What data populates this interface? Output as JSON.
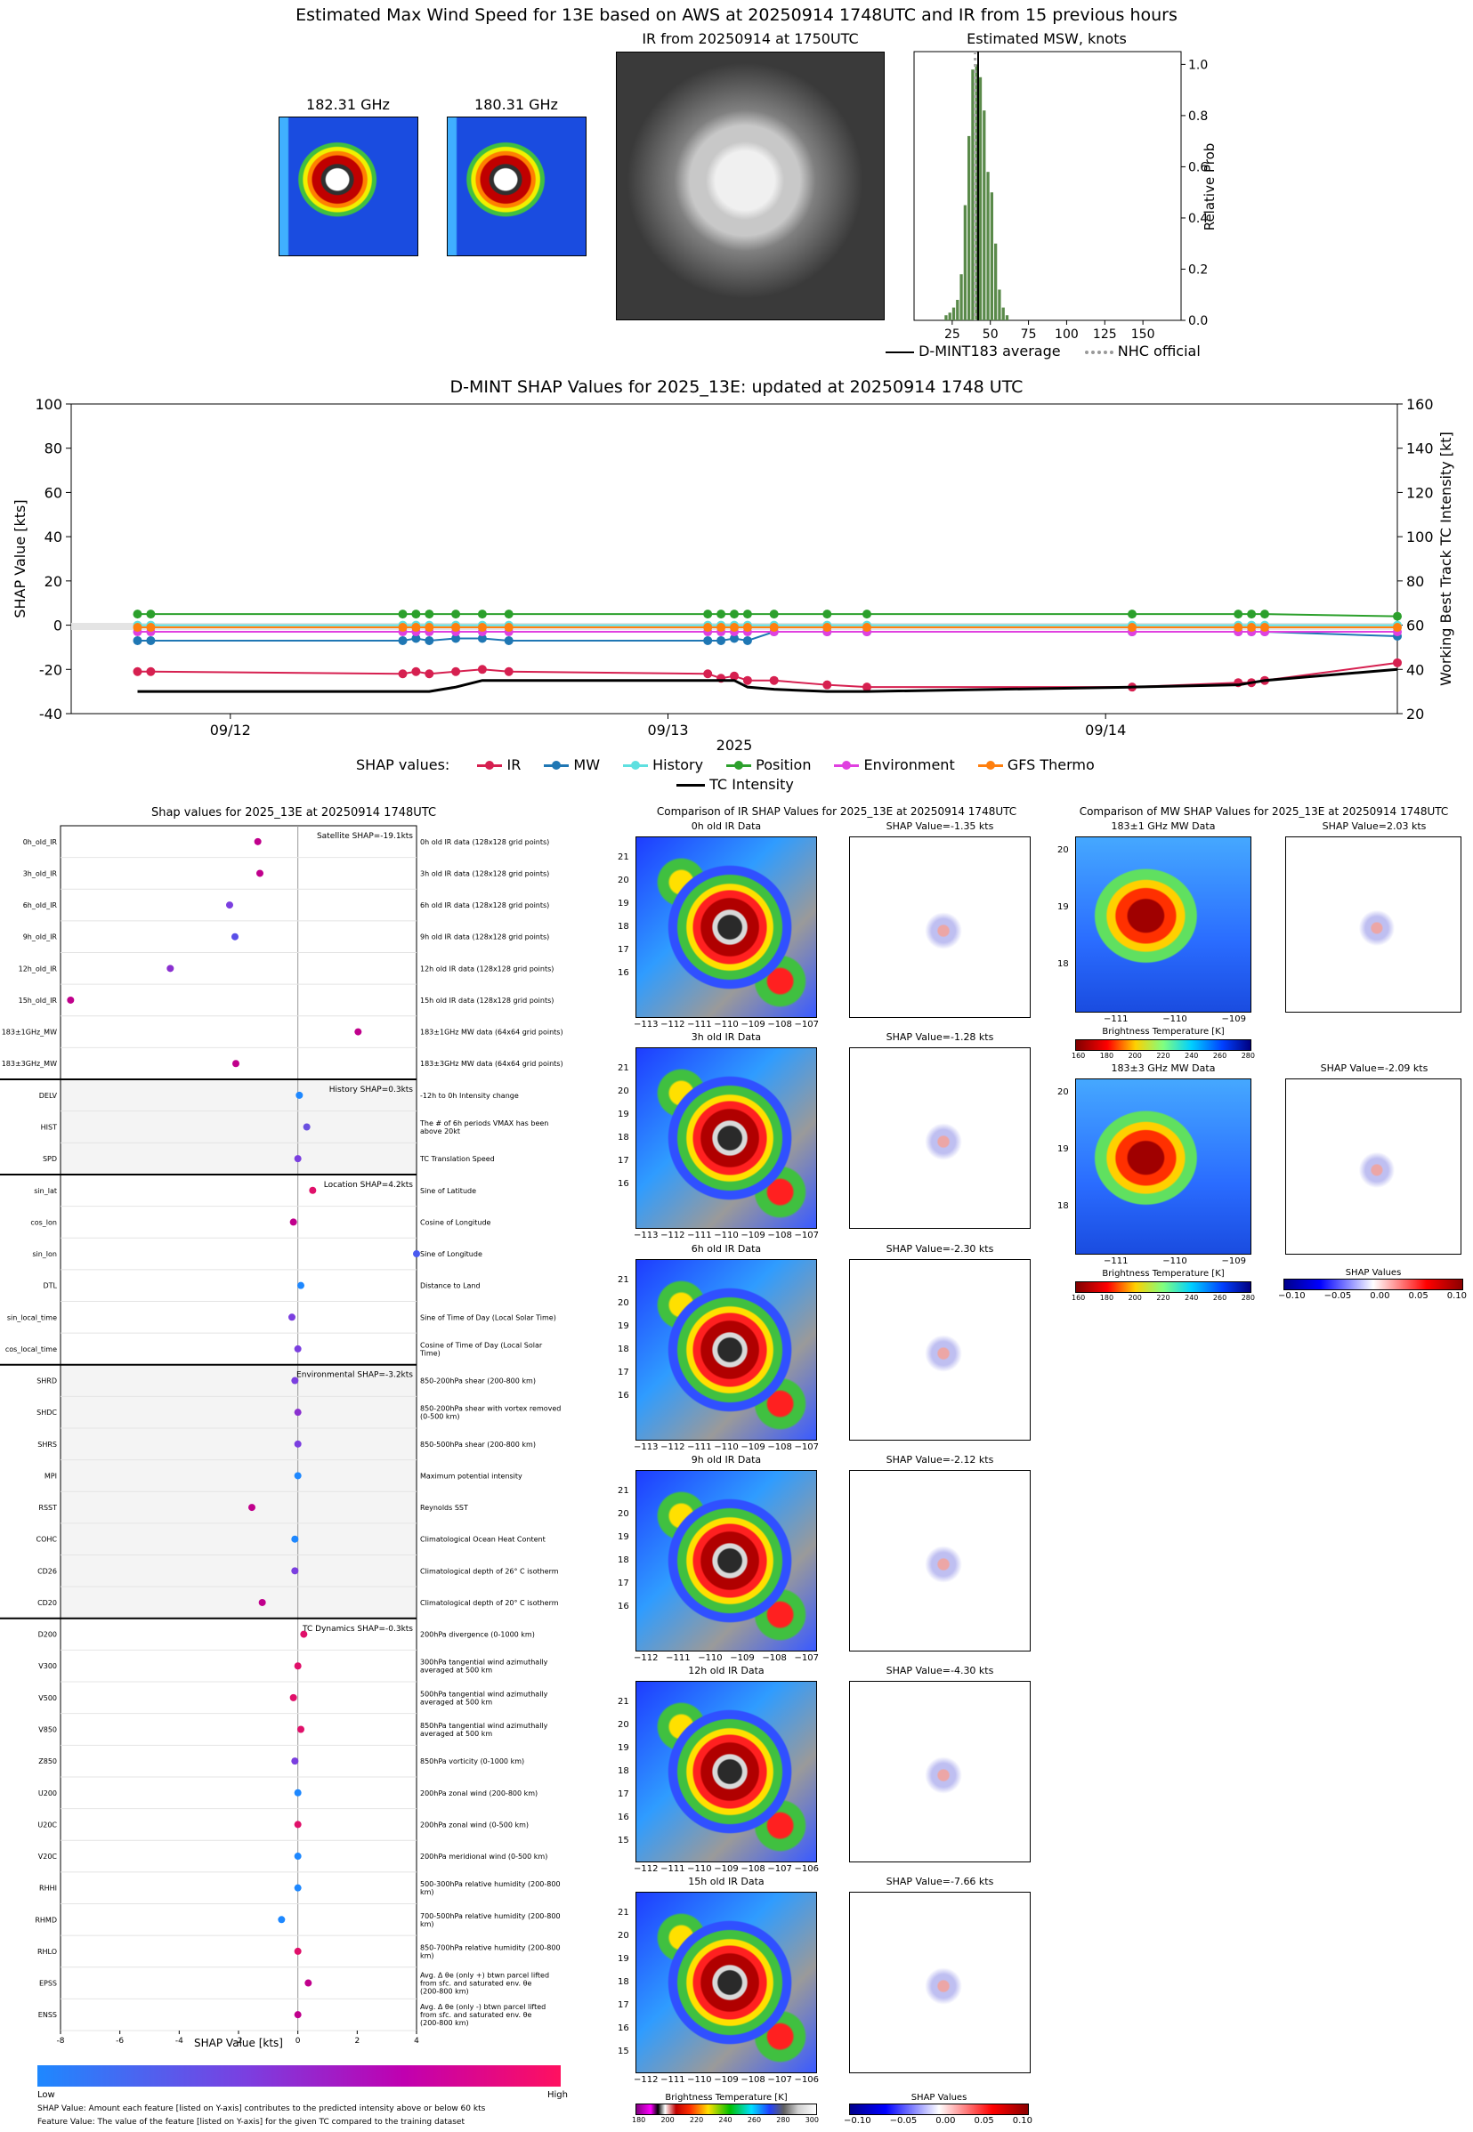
{
  "header": {
    "main_title": "Estimated Max Wind Speed for 13E based on AWS at 20250914 1748UTC and IR from 15 previous hours",
    "panel_182": "182.31 GHz",
    "panel_180": "180.31 GHz",
    "panel_ir": "IR from 20250914 at 1750UTC",
    "panel_msw": "Estimated MSW, knots",
    "msw_ylabel": "Relative Prob",
    "msw_xticks": [
      "25",
      "50",
      "75",
      "100",
      "125",
      "150"
    ],
    "msw_yticks": [
      "0.0",
      "0.2",
      "0.4",
      "0.6",
      "0.8",
      "1.0"
    ],
    "legend_avg": "D-MINT183 average",
    "legend_nhc": "NHC official"
  },
  "chart_data": [
    {
      "type": "bar",
      "title": "Estimated MSW, knots",
      "xlabel": "",
      "ylabel": "Relative Prob",
      "xlim": [
        0,
        175
      ],
      "ylim": [
        0,
        1.05
      ],
      "categories": [
        20,
        22.5,
        25,
        27.5,
        30,
        32.5,
        35,
        37.5,
        40,
        42.5,
        45,
        47.5,
        50,
        52.5,
        55,
        57.5,
        60
      ],
      "values": [
        0.02,
        0.03,
        0.05,
        0.08,
        0.18,
        0.45,
        0.72,
        0.98,
        1.0,
        0.95,
        0.82,
        0.58,
        0.5,
        0.3,
        0.12,
        0.05,
        0.02
      ],
      "avg_line": 42,
      "nhc_line": 40
    },
    {
      "type": "line",
      "title": "D-MINT SHAP Values for 2025_13E: updated at 20250914 1748 UTC",
      "xlabel": "2025",
      "ylabel": "SHAP Value [kts]",
      "y2label": "Working Best Track TC Intensity [kt]",
      "ylim": [
        -40,
        100
      ],
      "y2lim": [
        20,
        160
      ],
      "yticks": [
        "-40",
        "-20",
        "0",
        "20",
        "40",
        "60",
        "80",
        "100"
      ],
      "y2ticks": [
        "20",
        "40",
        "60",
        "80",
        "100",
        "120",
        "140",
        "160"
      ],
      "xticks": [
        "09/12",
        "09/13",
        "09/14"
      ],
      "x": [
        0.05,
        0.06,
        0.25,
        0.26,
        0.27,
        0.29,
        0.31,
        0.33,
        0.48,
        0.49,
        0.5,
        0.51,
        0.53,
        0.57,
        0.6,
        0.8,
        0.88,
        0.89,
        0.9,
        1.0
      ],
      "series": [
        {
          "name": "IR",
          "color": "#d62050",
          "values": [
            -21,
            -21,
            -22,
            -21,
            -22,
            -21,
            -20,
            -21,
            -22,
            -24,
            -23,
            -25,
            -25,
            -27,
            -28,
            -28,
            -26,
            -26,
            -25,
            -17
          ]
        },
        {
          "name": "MW",
          "color": "#1f77b4",
          "values": [
            -7,
            -7,
            -7,
            -6,
            -7,
            -6,
            -6,
            -7,
            -7,
            -7,
            -6,
            -7,
            -3,
            -3,
            -3,
            -3,
            -3,
            -3,
            -3,
            -5
          ]
        },
        {
          "name": "History",
          "color": "#5ee0e0",
          "values": [
            0,
            0,
            0,
            0,
            0,
            0,
            0,
            0,
            0,
            0,
            0,
            0,
            0,
            0,
            0,
            0,
            0,
            0,
            0,
            0
          ]
        },
        {
          "name": "Position",
          "color": "#2ca02c",
          "values": [
            5,
            5,
            5,
            5,
            5,
            5,
            5,
            5,
            5,
            5,
            5,
            5,
            5,
            5,
            5,
            5,
            5,
            5,
            5,
            4
          ]
        },
        {
          "name": "Environment",
          "color": "#e040e0",
          "values": [
            -3,
            -3,
            -3,
            -3,
            -3,
            -3,
            -3,
            -3,
            -3,
            -3,
            -3,
            -3,
            -3,
            -3,
            -3,
            -3,
            -3,
            -3,
            -3,
            -3
          ]
        },
        {
          "name": "GFS Thermo",
          "color": "#ff7f0e",
          "values": [
            -1,
            -1,
            -1,
            -1,
            -1,
            -1,
            -1,
            -1,
            -1,
            -1,
            -1,
            -1,
            -1,
            -1,
            -1,
            -1,
            -1,
            -1,
            -1,
            -1
          ]
        }
      ],
      "intensity": {
        "name": "TC Intensity",
        "color": "#000000",
        "values": [
          30,
          30,
          30,
          30,
          30,
          32,
          35,
          35,
          35,
          35,
          35,
          32,
          31,
          30,
          30,
          32,
          33,
          34,
          35,
          40
        ]
      }
    },
    {
      "type": "scatter",
      "title": "Shap values for 2025_13E at 20250914 1748UTC",
      "xlabel": "SHAP Value [kts]",
      "xlim": [
        -8,
        4
      ],
      "xticks": [
        "-8",
        "-6",
        "-4",
        "-2",
        "0",
        "2",
        "4"
      ],
      "features": [
        {
          "name": "0h_old_IR",
          "value": -1.35,
          "color": "#c0008c",
          "desc": "0h old IR data (128x128 grid points)"
        },
        {
          "name": "3h_old_IR",
          "value": -1.28,
          "color": "#c0008c",
          "desc": "3h old IR data (128x128 grid points)"
        },
        {
          "name": "6h_old_IR",
          "value": -2.3,
          "color": "#7b3fe0",
          "desc": "6h old IR data (128x128 grid points)"
        },
        {
          "name": "9h_old_IR",
          "value": -2.12,
          "color": "#5a4fe8",
          "desc": "9h old IR data (128x128 grid points)"
        },
        {
          "name": "12h_old_IR",
          "value": -4.3,
          "color": "#8a30d0",
          "desc": "12h old IR data (128x128 grid points)"
        },
        {
          "name": "15h_old_IR",
          "value": -7.66,
          "color": "#c0008c",
          "desc": "15h old IR data (128x128 grid points)"
        },
        {
          "name": "183±1GHz_MW",
          "value": 2.03,
          "color": "#c0008c",
          "desc": "183±1GHz MW data (64x64 grid points)"
        },
        {
          "name": "183±3GHz_MW",
          "value": -2.09,
          "color": "#c0008c",
          "desc": "183±3GHz MW data (64x64 grid points)"
        },
        {
          "name": "DELV",
          "value": 0.05,
          "color": "#1e88ff",
          "desc": "-12h to 0h Intensity change"
        },
        {
          "name": "HIST",
          "value": 0.3,
          "color": "#6a50e0",
          "desc": "The # of 6h periods VMAX has been above 20kt"
        },
        {
          "name": "SPD",
          "value": 0.0,
          "color": "#7b3fe0",
          "desc": "TC Translation Speed"
        },
        {
          "name": "sin_lat",
          "value": 0.5,
          "color": "#e0106a",
          "desc": "Sine of Latitude"
        },
        {
          "name": "cos_lon",
          "value": -0.15,
          "color": "#c0008c",
          "desc": "Cosine of Longitude"
        },
        {
          "name": "sin_lon",
          "value": 4.0,
          "color": "#4a5af0",
          "desc": "Sine of Longitude"
        },
        {
          "name": "DTL",
          "value": 0.1,
          "color": "#1e88ff",
          "desc": "Distance to Land"
        },
        {
          "name": "sin_local_time",
          "value": -0.2,
          "color": "#7b3fe0",
          "desc": "Sine of Time of Day (Local Solar Time)"
        },
        {
          "name": "cos_local_time",
          "value": 0.0,
          "color": "#7b3fe0",
          "desc": "Cosine of Time of Day (Local Solar Time)"
        },
        {
          "name": "SHRD",
          "value": -0.1,
          "color": "#7b3fe0",
          "desc": "850-200hPa shear (200-800 km)"
        },
        {
          "name": "SHDC",
          "value": 0.0,
          "color": "#8a30d0",
          "desc": "850-200hPa shear with vortex removed (0-500 km)"
        },
        {
          "name": "SHRS",
          "value": 0.0,
          "color": "#7b3fe0",
          "desc": "850-500hPa shear (200-800 km)"
        },
        {
          "name": "MPI",
          "value": 0.0,
          "color": "#1e88ff",
          "desc": "Maximum potential intensity"
        },
        {
          "name": "RSST",
          "value": -1.55,
          "color": "#c0008c",
          "desc": "Reynolds SST"
        },
        {
          "name": "COHC",
          "value": -0.1,
          "color": "#1e88ff",
          "desc": "Climatological Ocean Heat Content"
        },
        {
          "name": "CD26",
          "value": -0.1,
          "color": "#7b3fe0",
          "desc": "Climatological depth of 26° C isotherm"
        },
        {
          "name": "CD20",
          "value": -1.2,
          "color": "#c0008c",
          "desc": "Climatological depth of 20° C isotherm"
        },
        {
          "name": "D200",
          "value": 0.2,
          "color": "#e0106a",
          "desc": "200hPa divergence (0-1000 km)"
        },
        {
          "name": "V300",
          "value": 0.0,
          "color": "#e0106a",
          "desc": "300hPa tangential wind azimuthally averaged at 500 km"
        },
        {
          "name": "V500",
          "value": -0.15,
          "color": "#e0106a",
          "desc": "500hPa tangential wind azimuthally averaged at 500 km"
        },
        {
          "name": "V850",
          "value": 0.1,
          "color": "#e0106a",
          "desc": "850hPa tangential wind azimuthally averaged at 500 km"
        },
        {
          "name": "Z850",
          "value": -0.1,
          "color": "#7b3fe0",
          "desc": "850hPa vorticity (0-1000 km)"
        },
        {
          "name": "U200",
          "value": 0.0,
          "color": "#1e88ff",
          "desc": "200hPa zonal wind (200-800 km)"
        },
        {
          "name": "U20C",
          "value": 0.0,
          "color": "#e0106a",
          "desc": "200hPa zonal wind (0-500 km)"
        },
        {
          "name": "V20C",
          "value": 0.0,
          "color": "#1e88ff",
          "desc": "200hPa meridional wind (0-500 km)"
        },
        {
          "name": "RHHI",
          "value": 0.0,
          "color": "#1e88ff",
          "desc": "500-300hPa relative humidity (200-800 km)"
        },
        {
          "name": "RHMD",
          "value": -0.55,
          "color": "#1e88ff",
          "desc": "700-500hPa relative humidity (200-800 km)"
        },
        {
          "name": "RHLO",
          "value": 0.0,
          "color": "#e0106a",
          "desc": "850-700hPa relative humidity (200-800 km)"
        },
        {
          "name": "EPSS",
          "value": 0.35,
          "color": "#c0008c",
          "desc": "Avg. Δ θe (only +) btwn parcel lifted from sfc. and saturated env. θe (200-800 km)"
        },
        {
          "name": "ENSS",
          "value": 0.0,
          "color": "#c0008c",
          "desc": "Avg. Δ θe (only -) btwn parcel lifted from sfc. and saturated env. θe (200-800 km)"
        }
      ],
      "groups": [
        {
          "label": "Satellite SHAP=-19.1kts",
          "start": 0,
          "end": 7
        },
        {
          "label": "History SHAP=0.3kts",
          "start": 8,
          "end": 10
        },
        {
          "label": "Location SHAP=4.2kts",
          "start": 11,
          "end": 16
        },
        {
          "label": "Environmental SHAP=-3.2kts",
          "start": 17,
          "end": 24
        },
        {
          "label": "TC Dynamics SHAP=-0.3kts",
          "start": 25,
          "end": 37
        }
      ]
    }
  ],
  "shap_chart": {
    "title": "D-MINT SHAP Values for 2025_13E: updated at 20250914 1748 UTC",
    "legend_title": "SHAP values:",
    "legend_items": [
      "IR",
      "MW",
      "History",
      "Position",
      "Environment",
      "GFS Thermo"
    ],
    "legend_intensity": "TC Intensity"
  },
  "bottom": {
    "feature_title": "Shap values for 2025_13E at 20250914 1748UTC",
    "feature_xlabel": "SHAP Value [kts]",
    "colorbar_low": "Low",
    "colorbar_high": "High",
    "note1": "SHAP Value: Amount each feature [listed on Y-axis] contributes to the predicted intensity above or below 60 kts",
    "note2": "Feature Value: The value of the feature [listed on Y-axis] for the given TC compared to the training dataset",
    "ir_title": "Comparison of IR SHAP Values for 2025_13E at 20250914 1748UTC",
    "mw_title": "Comparison of MW SHAP Values for 2025_13E at 20250914 1748UTC",
    "ir_panels": [
      {
        "label": "0h old IR Data",
        "shap": "SHAP Value=-1.35 kts",
        "xticks": [
          "−113",
          "−112",
          "−111",
          "−110",
          "−109",
          "−108",
          "−107"
        ],
        "yticks": [
          "21",
          "20",
          "19",
          "18",
          "17",
          "16"
        ]
      },
      {
        "label": "3h old IR Data",
        "shap": "SHAP Value=-1.28 kts",
        "xticks": [
          "−113",
          "−112",
          "−111",
          "−110",
          "−109",
          "−108",
          "−107"
        ],
        "yticks": [
          "21",
          "20",
          "19",
          "18",
          "17",
          "16"
        ]
      },
      {
        "label": "6h old IR Data",
        "shap": "SHAP Value=-2.30 kts",
        "xticks": [
          "−113",
          "−112",
          "−111",
          "−110",
          "−109",
          "−108",
          "−107"
        ],
        "yticks": [
          "21",
          "20",
          "19",
          "18",
          "17",
          "16"
        ]
      },
      {
        "label": "9h old IR Data",
        "shap": "SHAP Value=-2.12 kts",
        "xticks": [
          "−112",
          "−111",
          "−110",
          "−109",
          "−108",
          "−107"
        ],
        "yticks": [
          "21",
          "20",
          "19",
          "18",
          "17",
          "16"
        ]
      },
      {
        "label": "12h old IR Data",
        "shap": "SHAP Value=-4.30 kts",
        "xticks": [
          "−112",
          "−111",
          "−110",
          "−109",
          "−108",
          "−107",
          "−106"
        ],
        "yticks": [
          "21",
          "20",
          "19",
          "18",
          "17",
          "16",
          "15"
        ]
      },
      {
        "label": "15h old IR Data",
        "shap": "SHAP Value=-7.66 kts",
        "xticks": [
          "−112",
          "−111",
          "−110",
          "−109",
          "−108",
          "−107",
          "−106"
        ],
        "yticks": [
          "21",
          "20",
          "19",
          "18",
          "17",
          "16",
          "15"
        ]
      }
    ],
    "mw_panels": [
      {
        "label": "183±1 GHz MW Data",
        "shap": "SHAP Value=2.03 kts",
        "xticks": [
          "−111",
          "−110",
          "−109"
        ],
        "yticks": [
          "20",
          "19",
          "18"
        ]
      },
      {
        "label": "183±3 GHz MW Data",
        "shap": "SHAP Value=-2.09 kts",
        "xticks": [
          "−111",
          "−110",
          "−109"
        ],
        "yticks": [
          "20",
          "19",
          "18"
        ]
      }
    ],
    "bt_label": "Brightness Temperature [K]",
    "bt_ticks": [
      "180",
      "200",
      "220",
      "240",
      "260",
      "280",
      "300"
    ],
    "mw_bt_ticks": [
      "160",
      "180",
      "200",
      "220",
      "240",
      "260",
      "280"
    ],
    "shap_label": "SHAP Values",
    "shap_ticks": [
      "−0.10",
      "−0.05",
      "0.00",
      "0.05",
      "0.10"
    ]
  }
}
